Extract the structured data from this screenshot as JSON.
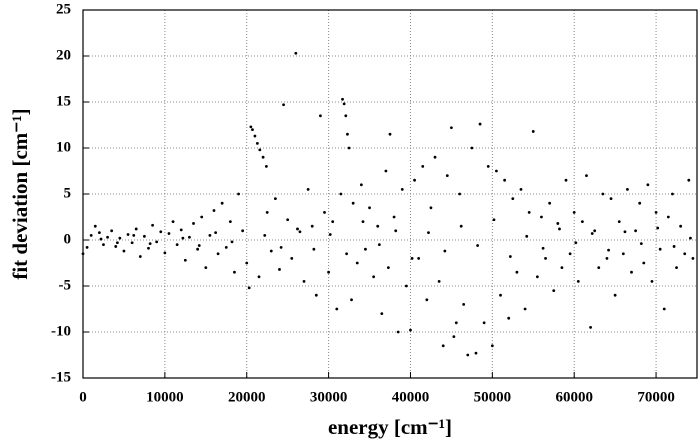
{
  "chart_data": {
    "type": "scatter",
    "xlabel": "energy  [cm⁻¹]",
    "ylabel": "fit deviation  [cm⁻¹]",
    "xlim": [
      0,
      75000
    ],
    "ylim": [
      -15,
      25
    ],
    "xticks": [
      0,
      10000,
      20000,
      30000,
      40000,
      50000,
      60000,
      70000
    ],
    "yticks": [
      -15,
      -10,
      -5,
      0,
      5,
      10,
      15,
      20,
      25
    ],
    "grid": true,
    "color": "#000000",
    "x": [
      0,
      500,
      1000,
      1500,
      2000,
      2500,
      3000,
      3500,
      4000,
      4500,
      5000,
      5500,
      6000,
      6500,
      7000,
      7500,
      8000,
      8500,
      9000,
      9500,
      10000,
      10500,
      11000,
      11500,
      12000,
      12500,
      13000,
      13500,
      14000,
      14500,
      15000,
      15500,
      16000,
      16500,
      17000,
      17500,
      18000,
      18500,
      19000,
      19500,
      20000,
      20500,
      20700,
      21000,
      21300,
      21600,
      22000,
      22400,
      20300,
      21500,
      22500,
      23000,
      23500,
      24000,
      24500,
      25000,
      25500,
      26000,
      26500,
      27000,
      27500,
      28000,
      28500,
      29000,
      29500,
      30000,
      30500,
      31000,
      31500,
      31700,
      31900,
      32100,
      32300,
      32500,
      32800,
      33000,
      33500,
      34000,
      34500,
      35000,
      35500,
      36000,
      36500,
      37000,
      37300,
      37500,
      38000,
      38500,
      39000,
      39500,
      40000,
      40500,
      41000,
      41500,
      42000,
      42500,
      43000,
      43500,
      44000,
      44500,
      45000,
      45300,
      45600,
      46000,
      46500,
      47000,
      47500,
      48000,
      48500,
      49000,
      49500,
      50000,
      50500,
      51000,
      51500,
      52000,
      52500,
      53000,
      53500,
      54000,
      54500,
      55000,
      55500,
      56000,
      56500,
      57000,
      57500,
      58000,
      58500,
      59000,
      59500,
      60000,
      60500,
      61000,
      61500,
      62000,
      62500,
      63000,
      63500,
      64000,
      64500,
      65000,
      65500,
      66000,
      66500,
      67000,
      67500,
      68000,
      68500,
      69000,
      69500,
      70000,
      70500,
      71000,
      71500,
      72000,
      72500,
      73000,
      73500,
      74000,
      74500,
      2200,
      4200,
      6200,
      8200,
      12200,
      14200,
      16200,
      18200,
      22200,
      24200,
      26200,
      28200,
      30200,
      32200,
      34200,
      36200,
      38200,
      40200,
      42200,
      44200,
      46200,
      48200,
      50200,
      52200,
      54200,
      56200,
      58200,
      60200,
      62200,
      64200,
      66200,
      68200,
      70200,
      72200,
      74200
    ],
    "values": [
      -1.5,
      -0.8,
      0.5,
      1.5,
      0.8,
      -0.5,
      0.3,
      1.0,
      -0.7,
      0.2,
      -1.2,
      0.6,
      -0.3,
      1.2,
      -1.8,
      0.4,
      -0.9,
      1.6,
      -0.2,
      0.9,
      -1.4,
      0.7,
      2.0,
      -0.5,
      1.1,
      -2.2,
      0.3,
      1.8,
      -1.0,
      2.5,
      -3.0,
      0.5,
      3.2,
      -1.5,
      4.0,
      -0.8,
      2.0,
      -3.5,
      5.0,
      1.0,
      -2.5,
      12.3,
      12.0,
      11.3,
      10.5,
      9.8,
      9.0,
      8.0,
      -5.2,
      -4.0,
      3.0,
      -1.2,
      4.5,
      -3.2,
      14.7,
      2.2,
      -2.0,
      20.3,
      0.9,
      -4.5,
      5.5,
      1.5,
      -6.0,
      13.5,
      3.0,
      -3.5,
      2.0,
      -7.5,
      5.0,
      15.3,
      14.8,
      13.5,
      11.5,
      10.0,
      -6.5,
      4.0,
      -2.5,
      6.0,
      -1.0,
      3.5,
      -4.0,
      1.5,
      -8.0,
      7.5,
      -3.0,
      11.5,
      2.5,
      -10.0,
      5.5,
      -5.0,
      -9.8,
      6.5,
      -2.0,
      8.0,
      -6.5,
      3.5,
      9.0,
      -4.5,
      -11.5,
      7.0,
      12.2,
      -10.5,
      -9.0,
      5.0,
      -7.0,
      -12.5,
      10.0,
      -12.3,
      12.6,
      -9.0,
      8.0,
      -11.5,
      7.5,
      -6.0,
      6.5,
      -8.5,
      4.5,
      -3.5,
      5.5,
      -7.5,
      3.0,
      11.8,
      -4.0,
      2.5,
      -2.0,
      4.0,
      -5.5,
      1.8,
      -3.0,
      6.5,
      -1.5,
      3.0,
      -4.5,
      2.0,
      7.0,
      -9.5,
      1.0,
      -3.0,
      5.0,
      -2.0,
      4.5,
      -6.0,
      2.0,
      -1.5,
      5.5,
      -3.5,
      1.0,
      4.0,
      -2.5,
      6.0,
      -4.5,
      3.0,
      -1.0,
      -7.5,
      2.5,
      5.0,
      -3.0,
      1.5,
      -1.5,
      6.5,
      -2.0,
      0.1,
      -0.3,
      0.5,
      -0.4,
      0.2,
      -0.6,
      0.8,
      -0.2,
      0.5,
      -0.8,
      1.2,
      -1.0,
      0.6,
      -1.5,
      2.0,
      -0.5,
      1.0,
      -2.0,
      0.8,
      -1.2,
      1.5,
      -0.6,
      2.2,
      -1.8,
      0.4,
      -0.9,
      1.2,
      -0.3,
      0.7,
      -1.1,
      0.9,
      -0.4,
      1.3,
      -0.7,
      0.2
    ]
  }
}
